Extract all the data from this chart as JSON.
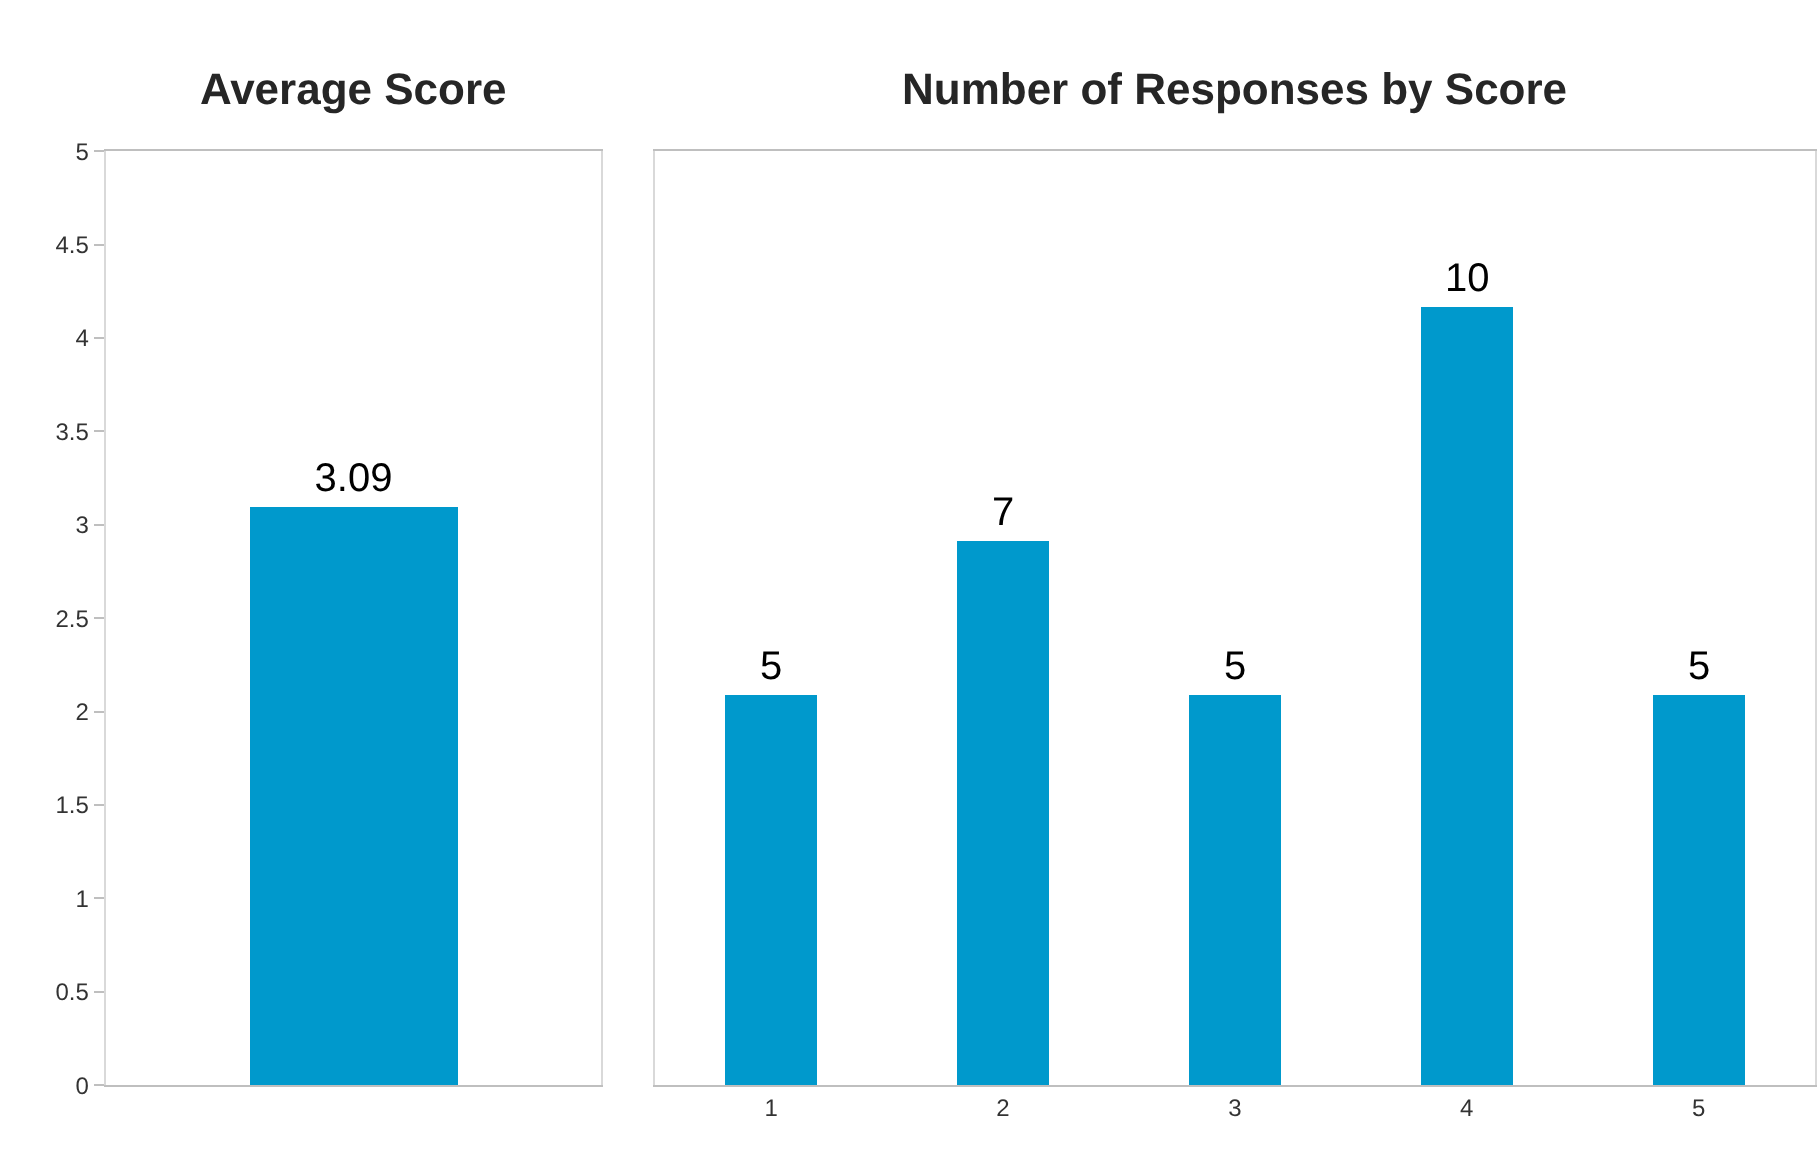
{
  "chart_data": [
    {
      "type": "bar",
      "title": "Average Score",
      "categories": [
        null
      ],
      "values": [
        3.09
      ],
      "color": "#0099cc",
      "ylim": [
        0,
        5
      ],
      "yticks": [
        0,
        0.5,
        1,
        1.5,
        2,
        2.5,
        3,
        3.5,
        4,
        4.5,
        5
      ],
      "data_labels": true
    },
    {
      "type": "bar",
      "title": "Number of Responses by Score",
      "categories": [
        "1",
        "2",
        "3",
        "4",
        "5"
      ],
      "values": [
        5,
        7,
        5,
        10,
        5
      ],
      "color": "#0099cc",
      "ylim": [
        0,
        12
      ],
      "tick_labels": "x",
      "data_labels": true
    }
  ]
}
